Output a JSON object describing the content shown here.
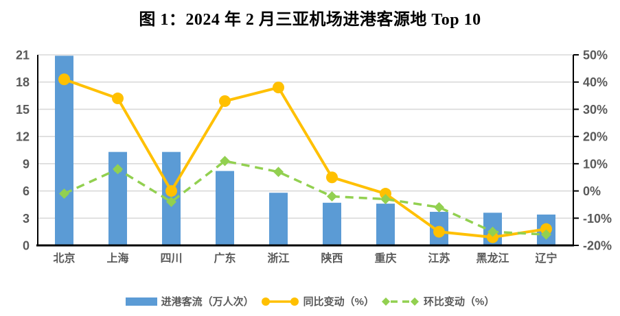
{
  "title": "图 1：2024 年 2 月三亚机场进港客源地 Top 10",
  "chart_data": {
    "type": "bar",
    "subtype": "combo-bar-and-lines",
    "title": "图 1：2024 年 2 月三亚机场进港客源地 Top 10",
    "categories": [
      "北京",
      "上海",
      "四川",
      "广东",
      "浙江",
      "陕西",
      "重庆",
      "江苏",
      "黑龙江",
      "辽宁"
    ],
    "series": [
      {
        "name": "进港客流（万人次）",
        "type": "bar",
        "axis": "left",
        "color": "#5B9BD5",
        "values": [
          20.9,
          10.3,
          10.3,
          8.2,
          5.8,
          4.7,
          4.6,
          3.7,
          3.6,
          3.4
        ]
      },
      {
        "name": "同比变动（%）",
        "type": "line",
        "marker": "circle",
        "axis": "right",
        "color": "#FFC000",
        "values": [
          41,
          34,
          0,
          33,
          38,
          5,
          -1,
          -15,
          -17,
          -14
        ]
      },
      {
        "name": "环比变动（%）",
        "type": "dashed-line",
        "marker": "diamond",
        "axis": "right",
        "color": "#92D050",
        "values": [
          -1,
          8,
          -4,
          11,
          7,
          -2,
          -3,
          -6,
          -15,
          -16
        ]
      }
    ],
    "left_axis": {
      "min": 0,
      "max": 21,
      "step": 3,
      "ticks": [
        "0",
        "3",
        "6",
        "9",
        "12",
        "15",
        "18",
        "21"
      ]
    },
    "right_axis": {
      "min": -20,
      "max": 50,
      "step": 10,
      "ticks": [
        "-20%",
        "-10%",
        "0%",
        "10%",
        "20%",
        "30%",
        "40%",
        "50%"
      ]
    },
    "grid": true,
    "legend_position": "bottom"
  },
  "style_colors": {
    "grid": "#D9D9D9",
    "axis_line": "#000000",
    "tick_text": "#595959",
    "background": "#FFFFFF"
  }
}
